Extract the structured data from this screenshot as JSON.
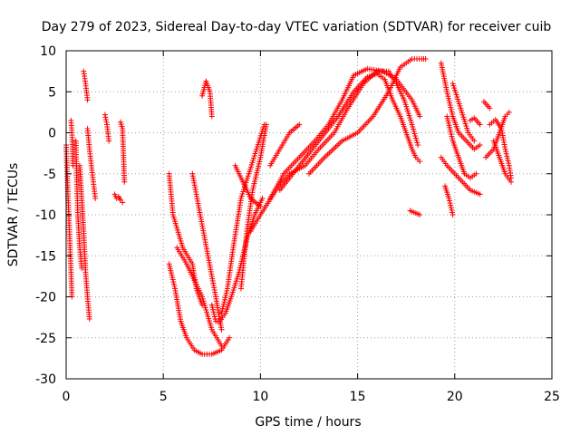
{
  "chart_data": {
    "type": "scatter",
    "title": "Day 279 of 2023, Sidereal Day-to-day VTEC variation (SDTVAR) for receiver cuib",
    "xlabel": "GPS time / hours",
    "ylabel": "SDTVAR / TECUs",
    "xlim": [
      0,
      25
    ],
    "ylim": [
      -30,
      10
    ],
    "xticks": [
      0,
      5,
      10,
      15,
      20,
      25
    ],
    "yticks": [
      -30,
      -25,
      -20,
      -15,
      -10,
      -5,
      0,
      5,
      10
    ],
    "grid": true,
    "marker": "+",
    "color": "#ff0000",
    "tracks": [
      {
        "x": [
          0.0,
          0.1,
          0.2,
          0.3
        ],
        "y": [
          -1.5,
          -8,
          -14,
          -20
        ]
      },
      {
        "x": [
          0.25,
          0.3,
          0.35
        ],
        "y": [
          1.5,
          0,
          -4
        ]
      },
      {
        "x": [
          0.5,
          0.55,
          0.6,
          0.7,
          0.8
        ],
        "y": [
          -1,
          -6,
          -10,
          -14,
          -16.5
        ]
      },
      {
        "x": [
          0.9,
          1.0,
          1.1
        ],
        "y": [
          7.5,
          6,
          4
        ]
      },
      {
        "x": [
          0.7,
          0.8,
          0.9,
          1.0,
          1.1,
          1.2
        ],
        "y": [
          -4,
          -8,
          -12,
          -17,
          -20,
          -22.7
        ]
      },
      {
        "x": [
          1.1,
          1.2,
          1.3,
          1.4,
          1.5
        ],
        "y": [
          0.5,
          -2,
          -4,
          -6,
          -8
        ]
      },
      {
        "x": [
          2.0,
          2.1,
          2.2
        ],
        "y": [
          2.2,
          1,
          -1
        ]
      },
      {
        "x": [
          2.5,
          2.6,
          2.7,
          2.8,
          2.9
        ],
        "y": [
          -7.5,
          -8,
          -7.8,
          -8.2,
          -8.5
        ]
      },
      {
        "x": [
          2.8,
          2.9,
          3.0
        ],
        "y": [
          1.3,
          0.5,
          -6
        ]
      },
      {
        "x": [
          5.3,
          5.5,
          6.0,
          6.5,
          6.7,
          7.0
        ],
        "y": [
          -5,
          -10,
          -14,
          -16,
          -19,
          -21
        ]
      },
      {
        "x": [
          5.3,
          5.6,
          5.9,
          6.2,
          6.6,
          7.0,
          7.5,
          8.0,
          8.4
        ],
        "y": [
          -16,
          -19,
          -23,
          -25,
          -26.5,
          -27,
          -27,
          -26.5,
          -25
        ]
      },
      {
        "x": [
          5.7,
          6.2,
          6.6,
          7.0,
          7.5,
          8.0
        ],
        "y": [
          -14,
          -16,
          -18,
          -20,
          -24,
          -26
        ]
      },
      {
        "x": [
          6.5,
          6.9,
          7.3,
          7.7,
          8.0
        ],
        "y": [
          -5,
          -10,
          -15,
          -20,
          -24
        ]
      },
      {
        "x": [
          7.0,
          7.2,
          7.4,
          7.5
        ],
        "y": [
          4.5,
          6.3,
          5,
          2
        ]
      },
      {
        "x": [
          7.5,
          7.7,
          7.9,
          8.2,
          8.5,
          8.9,
          9.3,
          9.7,
          10.1
        ],
        "y": [
          -21,
          -23,
          -23,
          -22,
          -20,
          -17,
          -13,
          -10,
          -8
        ]
      },
      {
        "x": [
          8.0,
          8.3,
          8.6,
          9.0,
          9.4,
          9.8,
          10.2
        ],
        "y": [
          -22,
          -19,
          -14,
          -8,
          -5,
          -2,
          1
        ]
      },
      {
        "x": [
          9.0,
          9.3,
          9.6,
          10.0,
          10.3
        ],
        "y": [
          -19,
          -12,
          -7,
          -3,
          1
        ]
      },
      {
        "x": [
          8.7,
          9.1,
          9.5,
          10.0
        ],
        "y": [
          -4,
          -6,
          -8,
          -9
        ]
      },
      {
        "x": [
          9.5,
          10.0,
          10.8,
          11.5,
          12.3,
          13.0,
          13.8,
          14.5,
          15.3,
          16.0,
          16.6,
          17.0,
          17.4,
          17.8,
          18.1
        ],
        "y": [
          -12,
          -10,
          -7,
          -5,
          -4,
          -2,
          0,
          3,
          6,
          7.5,
          7.5,
          6,
          4,
          1,
          -1.5
        ]
      },
      {
        "x": [
          10.5,
          11.2,
          12.0,
          12.8,
          13.5,
          14.2,
          14.8,
          15.5,
          16.3,
          17.0,
          17.8,
          18.2
        ],
        "y": [
          -8,
          -5,
          -3,
          -1,
          1,
          4,
          7,
          7.8,
          7.5,
          6.5,
          4,
          2
        ]
      },
      {
        "x": [
          11.0,
          12.0,
          13.0,
          14.0,
          14.8,
          15.5,
          16.0,
          16.4,
          16.8,
          17.2,
          17.5,
          17.8,
          18.0,
          18.2
        ],
        "y": [
          -7,
          -4,
          -1,
          2,
          5,
          6.8,
          7.2,
          6.5,
          4,
          2,
          0,
          -2,
          -3,
          -3.5
        ]
      },
      {
        "x": [
          12.5,
          13.3,
          14.2,
          15.0,
          15.8,
          16.6,
          17.2,
          17.8,
          18.3,
          18.5
        ],
        "y": [
          -5,
          -3,
          -1,
          0,
          2,
          5,
          8,
          9,
          9,
          9
        ]
      },
      {
        "x": [
          10.5,
          11.0,
          11.5,
          12.0
        ],
        "y": [
          -4,
          -2,
          0,
          1
        ]
      },
      {
        "x": [
          17.7,
          18.0,
          18.2
        ],
        "y": [
          -9.5,
          -9.8,
          -10
        ]
      },
      {
        "x": [
          19.3,
          19.6,
          19.9,
          20.2,
          20.6,
          21.0,
          21.3
        ],
        "y": [
          8.5,
          5,
          2,
          0,
          -1,
          -2,
          -1.5
        ]
      },
      {
        "x": [
          19.3,
          19.6,
          20.0,
          20.4,
          20.8,
          21.3
        ],
        "y": [
          -3,
          -4,
          -5,
          -6,
          -7,
          -7.5
        ]
      },
      {
        "x": [
          19.6,
          19.9,
          20.2,
          20.5,
          20.8,
          21.1
        ],
        "y": [
          2,
          -1,
          -3,
          -5,
          -5.5,
          -5
        ]
      },
      {
        "x": [
          19.9,
          20.3,
          20.7,
          21.0
        ],
        "y": [
          6,
          3,
          0,
          -1
        ]
      },
      {
        "x": [
          19.5,
          19.7,
          19.9
        ],
        "y": [
          -6.5,
          -8,
          -10
        ]
      },
      {
        "x": [
          20.8,
          21.0,
          21.3
        ],
        "y": [
          1.5,
          1.8,
          1
        ]
      },
      {
        "x": [
          21.6,
          22.0,
          22.3,
          22.6,
          22.8
        ],
        "y": [
          -3,
          -2,
          0,
          2,
          2.5
        ]
      },
      {
        "x": [
          21.8,
          22.1,
          22.4,
          22.6,
          22.8,
          22.9
        ],
        "y": [
          1,
          1.6,
          0.5,
          -2,
          -4,
          -5.5
        ]
      },
      {
        "x": [
          21.5,
          21.8
        ],
        "y": [
          3.8,
          3
        ]
      },
      {
        "x": [
          22.0,
          22.3,
          22.6,
          22.9
        ],
        "y": [
          -1,
          -3,
          -5,
          -6
        ]
      }
    ]
  }
}
